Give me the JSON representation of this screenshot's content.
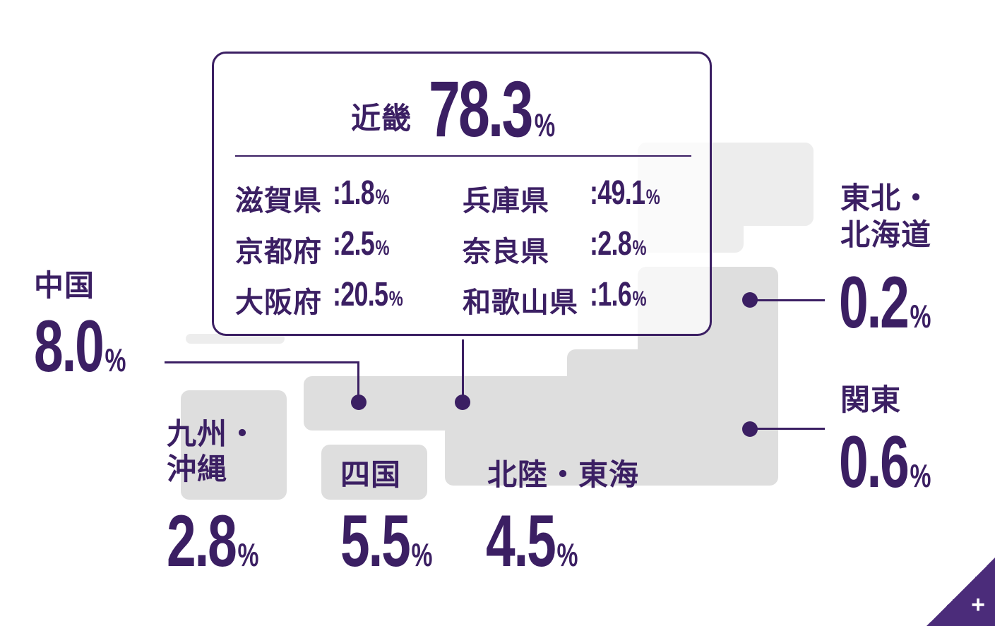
{
  "kinki": {
    "region": "近畿",
    "value": "78.3",
    "unit": "%",
    "prefectures": [
      {
        "name": "滋賀県",
        "value": "1.8"
      },
      {
        "name": "京都府",
        "value": "2.5"
      },
      {
        "name": "大阪府",
        "value": "20.5"
      },
      {
        "name": "兵庫県",
        "value": "49.1"
      },
      {
        "name": "奈良県",
        "value": "2.8"
      },
      {
        "name": "和歌山県",
        "value": "1.6"
      }
    ]
  },
  "regions": {
    "chugoku": {
      "name": "中国",
      "value": "8.0"
    },
    "kyushu": {
      "name_line1": "九州・",
      "name_line2": "沖縄",
      "value": "2.8"
    },
    "shikoku": {
      "name": "四国",
      "value": "5.5"
    },
    "hokuriku": {
      "name": "北陸・東海",
      "value": "4.5"
    },
    "tohoku": {
      "name_line1": "東北・",
      "name_line2": "北海道",
      "value": "0.2"
    },
    "kanto": {
      "name": "関東",
      "value": "0.6"
    }
  },
  "colon": ":",
  "unit": "%",
  "expand_button": {
    "icon": "plus-icon",
    "label": "+"
  },
  "colors": {
    "accent": "#3b1f63",
    "map_light": "#ededed",
    "map_mid": "#dedede"
  }
}
